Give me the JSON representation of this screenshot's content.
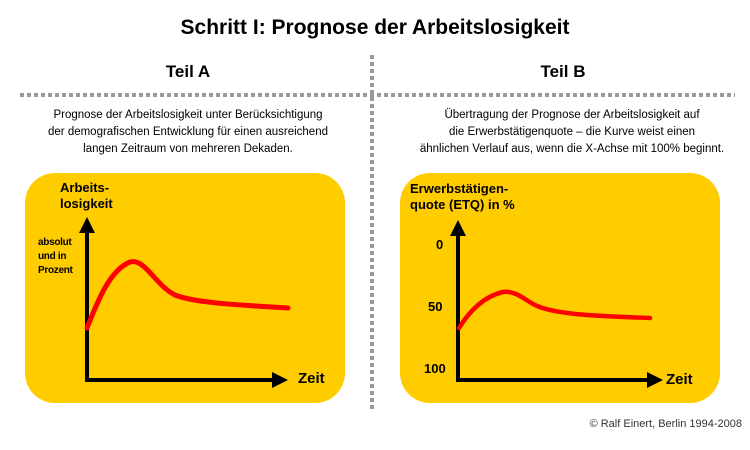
{
  "title": "Schritt I: Prognose der Arbeitslosigkeit",
  "teil_a": {
    "heading": "Teil A",
    "description": [
      "Prognose der Arbeitslosigkeit unter Berücksichtigung",
      "der demografischen Entwicklung für einen ausreichend",
      "langen Zeitraum von mehreren Dekaden."
    ],
    "y_label": [
      "Arbeits-",
      "losigkeit"
    ],
    "y_note": [
      "absolut",
      "und in",
      "Prozent"
    ],
    "x_label": "Zeit"
  },
  "teil_b": {
    "heading": "Teil B",
    "description": [
      "Übertragung der Prognose der Arbeitslosigkeit auf",
      "die Erwerbstätigenquote – die Kurve weist einen",
      "ähnlichen Verlauf aus, wenn die X-Achse mit 100% beginnt."
    ],
    "y_label": [
      "Erwerbstätigen-",
      "quote (ETQ) in %"
    ],
    "y_ticks": [
      "0",
      "50",
      "100"
    ],
    "x_label": "Zeit"
  },
  "copyright": "© Ralf Einert, Berlin 1994-2008",
  "colors": {
    "panel": "#ffcc00",
    "curve": "#ff0000",
    "divider": "#999999"
  }
}
